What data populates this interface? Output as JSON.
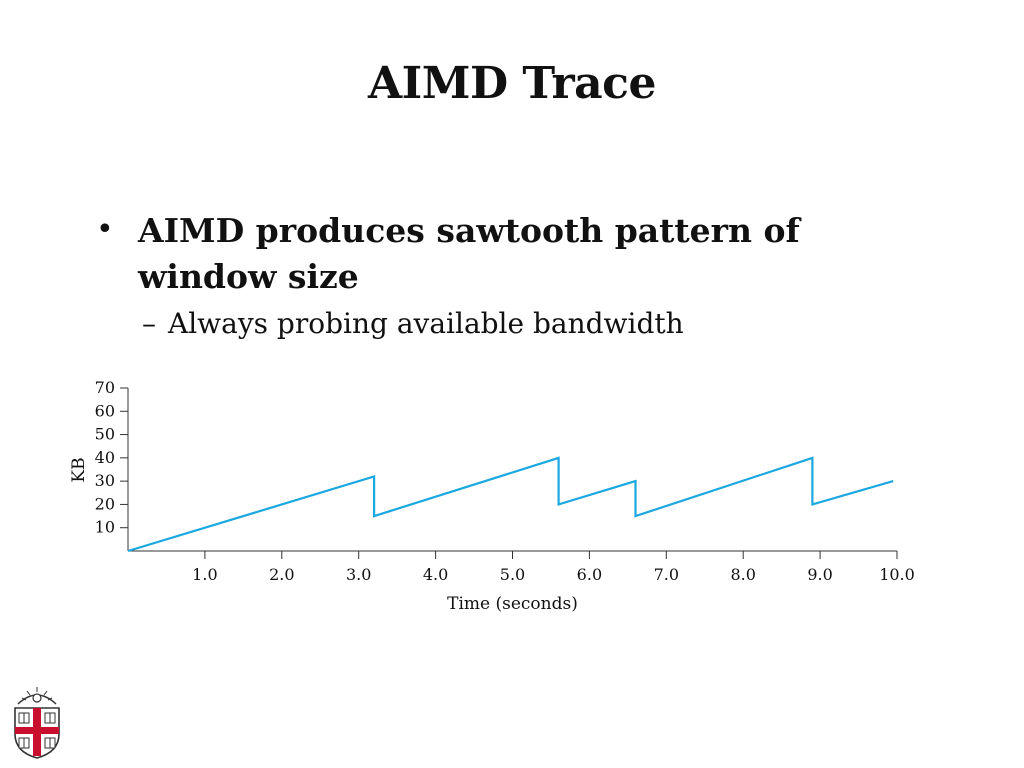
{
  "slide": {
    "title": "AIMD Trace",
    "bullet": "AIMD produces sawtooth pattern of window size",
    "sub_bullet": "Always probing available bandwidth"
  },
  "chart_data": {
    "type": "line",
    "title": "",
    "xlabel": "Time (seconds)",
    "ylabel": "KB",
    "xlim": [
      0,
      10
    ],
    "ylim": [
      0,
      70
    ],
    "x_ticks": [
      "1.0",
      "2.0",
      "3.0",
      "4.0",
      "5.0",
      "6.0",
      "7.0",
      "8.0",
      "9.0",
      "10.0"
    ],
    "y_ticks": [
      "10",
      "20",
      "30",
      "40",
      "50",
      "60",
      "70"
    ],
    "grid": false,
    "color": "#1ba8e0",
    "series": [
      {
        "x": [
          0,
          3.2,
          3.2,
          5.6,
          5.6,
          6.6,
          6.6,
          8.9,
          8.9,
          9.95
        ],
        "y": [
          0,
          32,
          15,
          40,
          20,
          30,
          15,
          40,
          20,
          30
        ]
      }
    ]
  },
  "logo": {
    "name": "university-seal"
  }
}
